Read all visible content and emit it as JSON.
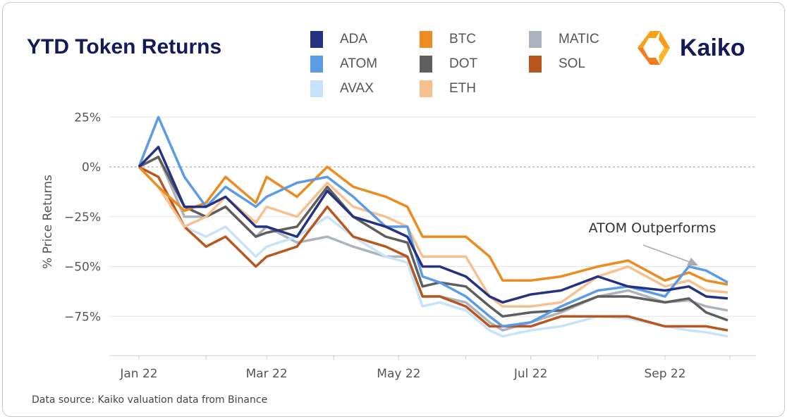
{
  "title": "YTD Token Returns",
  "logo": {
    "text": "Kaiko"
  },
  "source": "Data source: Kaiko valuation data from Binance",
  "chart_data": {
    "type": "line",
    "title": "YTD Token Returns",
    "ylabel": "% Price Returns",
    "xlabel": "",
    "ylim": [
      -90,
      33
    ],
    "xlim": [
      "2021-12-20",
      "2022-10-12"
    ],
    "y_ticks": [
      25,
      0,
      -25,
      -50,
      -75
    ],
    "y_tick_labels": [
      "25%",
      "0%",
      "−25%",
      "−50%",
      "−75%"
    ],
    "x_tick_labels": [
      {
        "date": "2022-01-01",
        "label": "Jan 22"
      },
      {
        "date": "2022-03-01",
        "label": "Mar 22"
      },
      {
        "date": "2022-05-01",
        "label": "May 22"
      },
      {
        "date": "2022-07-01",
        "label": "Jul 22"
      },
      {
        "date": "2022-09-01",
        "label": "Sep 22"
      }
    ],
    "grid": true,
    "zero_line": "dashed",
    "legend_position": "top",
    "annotation": {
      "text": "ATOM Outperforms",
      "target_date": "2022-09-20",
      "target_value": -50
    },
    "x": [
      "2022-01-01",
      "2022-01-10",
      "2022-01-22",
      "2022-02-01",
      "2022-02-10",
      "2022-02-24",
      "2022-03-01",
      "2022-03-15",
      "2022-03-29",
      "2022-04-10",
      "2022-04-25",
      "2022-05-05",
      "2022-05-12",
      "2022-05-20",
      "2022-06-01",
      "2022-06-12",
      "2022-06-18",
      "2022-07-01",
      "2022-07-15",
      "2022-08-01",
      "2022-08-15",
      "2022-09-01",
      "2022-09-12",
      "2022-09-20",
      "2022-09-30"
    ],
    "series": [
      {
        "name": "MATIC",
        "color": "#adb3bd",
        "values": [
          0,
          5,
          -25,
          -25,
          -20,
          -35,
          -30,
          -38,
          -35,
          -40,
          -45,
          -45,
          -65,
          -65,
          -68,
          -78,
          -82,
          -78,
          -73,
          -65,
          -62,
          -68,
          -67,
          -70,
          -72
        ]
      },
      {
        "name": "AVAX",
        "color": "#c6e3fb",
        "values": [
          0,
          -10,
          -30,
          -35,
          -30,
          -45,
          -40,
          -35,
          -25,
          -35,
          -45,
          -48,
          -70,
          -68,
          -72,
          -82,
          -85,
          -82,
          -80,
          -75,
          -76,
          -80,
          -82,
          -83,
          -85
        ]
      },
      {
        "name": "SOL",
        "color": "#b8561f",
        "values": [
          0,
          -5,
          -30,
          -40,
          -35,
          -50,
          -45,
          -40,
          -20,
          -35,
          -40,
          -45,
          -65,
          -65,
          -70,
          -80,
          -80,
          -80,
          -75,
          -75,
          -75,
          -80,
          -80,
          -80,
          -82
        ]
      },
      {
        "name": "DOT",
        "color": "#5e5e5e",
        "values": [
          0,
          5,
          -20,
          -25,
          -20,
          -35,
          -33,
          -30,
          -10,
          -25,
          -35,
          -38,
          -60,
          -58,
          -60,
          -70,
          -75,
          -73,
          -72,
          -65,
          -65,
          -68,
          -66,
          -73,
          -77
        ]
      },
      {
        "name": "ETH",
        "color": "#f6c08f",
        "values": [
          0,
          -10,
          -30,
          -25,
          -15,
          -28,
          -20,
          -25,
          -8,
          -20,
          -25,
          -30,
          -45,
          -45,
          -45,
          -65,
          -70,
          -70,
          -68,
          -55,
          -50,
          -60,
          -57,
          -62,
          -63
        ]
      },
      {
        "name": "BTC",
        "color": "#ec8c20",
        "values": [
          0,
          -10,
          -22,
          -18,
          -5,
          -18,
          -5,
          -15,
          0,
          -10,
          -15,
          -20,
          -35,
          -35,
          -35,
          -45,
          -57,
          -57,
          -55,
          -50,
          -47,
          -57,
          -53,
          -57,
          -59
        ]
      },
      {
        "name": "ATOM",
        "color": "#5b9be6",
        "values": [
          0,
          25,
          -5,
          -20,
          -10,
          -20,
          -15,
          -8,
          -5,
          -15,
          -30,
          -30,
          -55,
          -58,
          -65,
          -75,
          -80,
          -78,
          -70,
          -62,
          -60,
          -65,
          -50,
          -52,
          -58
        ]
      },
      {
        "name": "ADA",
        "color": "#253282",
        "values": [
          0,
          10,
          -20,
          -20,
          -15,
          -30,
          -30,
          -35,
          -12,
          -25,
          -30,
          -35,
          -50,
          -50,
          -55,
          -65,
          -68,
          -64,
          -62,
          -55,
          -60,
          -62,
          -60,
          -65,
          -66
        ]
      }
    ]
  },
  "legend": [
    {
      "name": "ADA",
      "color": "#253282"
    },
    {
      "name": "ATOM",
      "color": "#5b9be6"
    },
    {
      "name": "AVAX",
      "color": "#c6e3fb"
    },
    {
      "name": "BTC",
      "color": "#ec8c20"
    },
    {
      "name": "DOT",
      "color": "#5e5e5e"
    },
    {
      "name": "ETH",
      "color": "#f6c08f"
    },
    {
      "name": "MATIC",
      "color": "#adb3bd"
    },
    {
      "name": "SOL",
      "color": "#b8561f"
    }
  ]
}
